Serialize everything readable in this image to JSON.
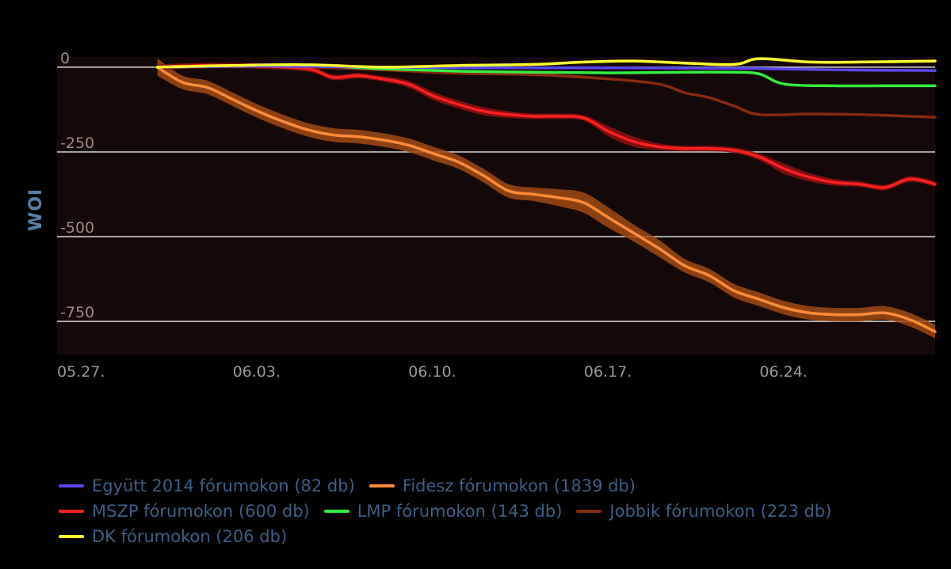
{
  "chart_data": {
    "type": "line",
    "title": "",
    "xlabel": "",
    "ylabel": "WOI",
    "ylim": [
      -850,
      30
    ],
    "x_range": [
      "05.27.",
      "07.01."
    ],
    "x_ticks": [
      "05.27.",
      "06.03.",
      "06.10.",
      "06.17.",
      "06.24."
    ],
    "y_ticks": [
      0,
      -250,
      -500,
      -750
    ],
    "y_tick_labels": [
      "0",
      "-250",
      "-500",
      "-750"
    ],
    "grid": true,
    "legend_position": "bottom",
    "colors": {
      "background": "#000000",
      "plot_background": "#150808",
      "gridline": "#d8d8d8"
    },
    "series": [
      {
        "name": "Együtt 2014 fórumokon (82 db)",
        "color": "#5b46f0",
        "x": [
          "05.31.",
          "06.03.",
          "06.06.",
          "06.09.",
          "06.12.",
          "06.15.",
          "06.18.",
          "06.21.",
          "06.24.",
          "06.27.",
          "07.01."
        ],
        "y": [
          0,
          3,
          2,
          0,
          -2,
          -2,
          -2,
          -3,
          -4,
          -8,
          -10
        ]
      },
      {
        "name": "Fidesz fórumokon (1839 db)",
        "color": "#ff8c3a",
        "band_color": "#a04a14",
        "x": [
          "05.31.",
          "06.01.",
          "06.02.",
          "06.03.",
          "06.04.",
          "06.05.",
          "06.06.",
          "06.07.",
          "06.08.",
          "06.09.",
          "06.10.",
          "06.11.",
          "06.12.",
          "06.13.",
          "06.14.",
          "06.15.",
          "06.16.",
          "06.17.",
          "06.18.",
          "06.19.",
          "06.20.",
          "06.21.",
          "06.22.",
          "06.23.",
          "06.24.",
          "06.25.",
          "06.26.",
          "06.27.",
          "06.28.",
          "06.29.",
          "06.30.",
          "07.01."
        ],
        "y": [
          0,
          -45,
          -60,
          -95,
          -130,
          -160,
          -185,
          -200,
          -205,
          -215,
          -230,
          -255,
          -280,
          -320,
          -365,
          -375,
          -385,
          -400,
          -445,
          -490,
          -535,
          -585,
          -615,
          -660,
          -685,
          -710,
          -725,
          -730,
          -730,
          -725,
          -745,
          -780
        ],
        "band": [
          25,
          20,
          20,
          20,
          20,
          20,
          20,
          20,
          20,
          20,
          20,
          20,
          20,
          20,
          20,
          20,
          25,
          30,
          30,
          25,
          25,
          20,
          20,
          20,
          20,
          20,
          20,
          20,
          20,
          20,
          20,
          20
        ]
      },
      {
        "name": "MSZP fórumokon (600 db)",
        "color": "#ff2020",
        "band_color": "#8e1010",
        "x": [
          "05.31.",
          "06.02.",
          "06.04.",
          "06.06.",
          "06.07.",
          "06.08.",
          "06.09.",
          "06.10.",
          "06.11.",
          "06.12.",
          "06.13.",
          "06.14.",
          "06.15.",
          "06.16.",
          "06.17.",
          "06.18.",
          "06.19.",
          "06.20.",
          "06.21.",
          "06.22.",
          "06.23.",
          "06.24.",
          "06.25.",
          "06.26.",
          "06.27.",
          "06.28.",
          "06.29.",
          "06.30.",
          "07.01."
        ],
        "y": [
          0,
          5,
          3,
          -5,
          -30,
          -25,
          -35,
          -50,
          -85,
          -110,
          -130,
          -140,
          -145,
          -145,
          -150,
          -190,
          -220,
          -235,
          -240,
          -240,
          -245,
          -265,
          -300,
          -325,
          -340,
          -345,
          -355,
          -330,
          -345
        ],
        "band": [
          8,
          8,
          8,
          8,
          8,
          8,
          8,
          10,
          12,
          12,
          12,
          10,
          8,
          8,
          8,
          15,
          15,
          10,
          8,
          8,
          8,
          10,
          15,
          12,
          10,
          8,
          8,
          8,
          8
        ]
      },
      {
        "name": "LMP fórumokon (143 db)",
        "color": "#33f040",
        "x": [
          "05.31.",
          "06.03.",
          "06.06.",
          "06.09.",
          "06.12.",
          "06.15.",
          "06.18.",
          "06.21.",
          "06.23.",
          "06.24.",
          "06.25.",
          "06.27.",
          "06.29.",
          "07.01."
        ],
        "y": [
          0,
          3,
          5,
          -5,
          -12,
          -15,
          -17,
          -15,
          -15,
          -20,
          -50,
          -55,
          -55,
          -55
        ]
      },
      {
        "name": "Jobbik fórumokon (223 db)",
        "color": "#8b2a10",
        "x": [
          "05.31.",
          "06.03.",
          "06.06.",
          "06.09.",
          "06.12.",
          "06.15.",
          "06.18.",
          "06.20.",
          "06.21.",
          "06.22.",
          "06.23.",
          "06.24.",
          "06.26.",
          "06.28.",
          "06.30.",
          "07.01."
        ],
        "y": [
          0,
          2,
          0,
          -8,
          -18,
          -22,
          -35,
          -50,
          -75,
          -90,
          -115,
          -140,
          -138,
          -140,
          -145,
          -148
        ]
      },
      {
        "name": "DK fórumokon (206 db)",
        "color": "#ffff30",
        "x": [
          "05.31.",
          "06.03.",
          "06.06.",
          "06.09.",
          "06.12.",
          "06.15.",
          "06.17.",
          "06.19.",
          "06.21.",
          "06.23.",
          "06.24.",
          "06.26.",
          "06.28.",
          "07.01."
        ],
        "y": [
          0,
          5,
          7,
          0,
          5,
          8,
          15,
          18,
          12,
          8,
          25,
          15,
          15,
          18
        ]
      }
    ]
  },
  "legend_rows": [
    [
      0,
      1
    ],
    [
      2,
      3,
      4
    ],
    [
      5
    ]
  ]
}
